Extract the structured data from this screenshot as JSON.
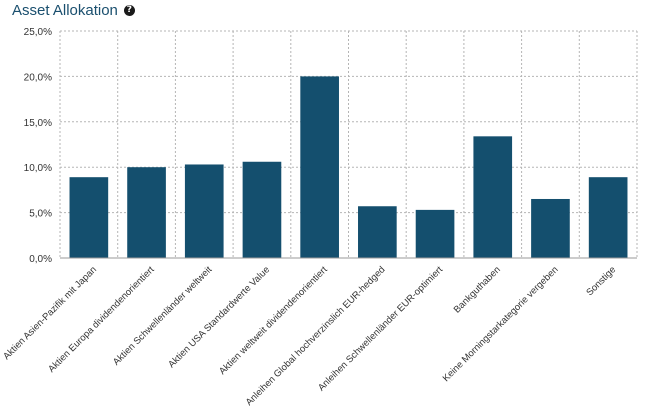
{
  "header": {
    "title": "Asset Allokation",
    "help_icon": "question-circle-icon"
  },
  "colors": {
    "bar": "#144f6e",
    "title": "#1a4f6e",
    "grid": "#b5b5b5"
  },
  "chart_data": {
    "type": "bar",
    "title": "Asset Allokation",
    "categories": [
      "Aktien Asien-Pazifik mit Japan",
      "Aktien Europa dividendenorientiert",
      "Aktien Schwellenländer weltweit",
      "Aktien USA Standardwerte Value",
      "Aktien weltweit dividendenorientiert",
      "Anleihen Global hochverzinslich EUR-hedged",
      "Anleihen Schwellenländer EUR-optimiert",
      "Bankguthaben",
      "Keine Morningstarkategorie vergeben",
      "Sonstige"
    ],
    "values": [
      8.9,
      10.0,
      10.3,
      10.6,
      20.0,
      5.7,
      5.3,
      13.4,
      6.5,
      8.9
    ],
    "ylim": [
      0,
      25
    ],
    "yticks": [
      0,
      5,
      10,
      15,
      20,
      25
    ],
    "ytick_labels": [
      "0,0%",
      "5,0%",
      "10,0%",
      "15,0%",
      "20,0%",
      "25,0%"
    ],
    "grid": true,
    "xlabel": "",
    "ylabel": ""
  }
}
